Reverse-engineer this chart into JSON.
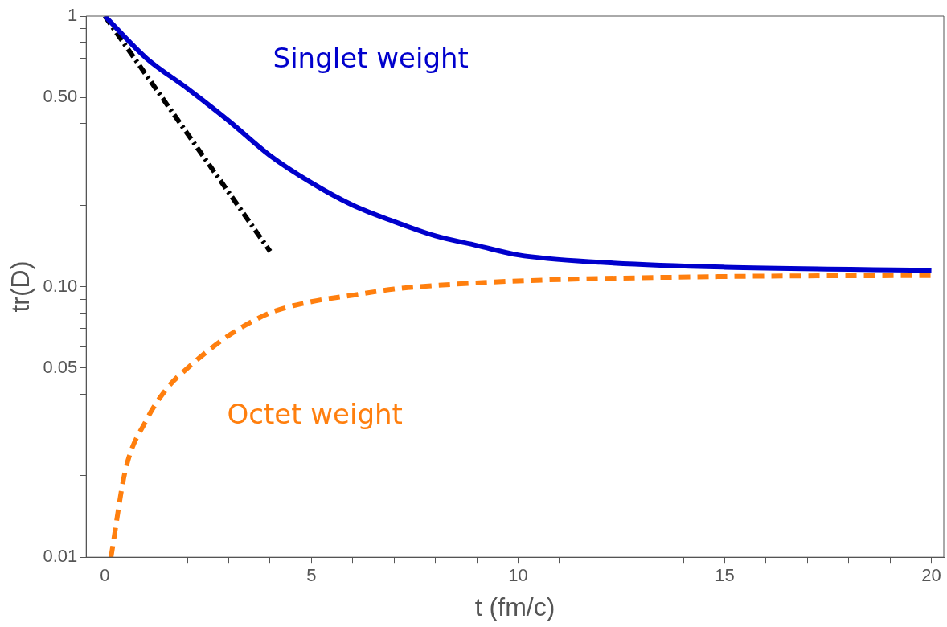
{
  "chart_data": {
    "type": "line",
    "xlabel": "t (fm/c)",
    "ylabel": "tr(D)",
    "log": "y",
    "grid": false,
    "legend": false,
    "marker": "none",
    "xlim": [
      -0.45,
      20.3
    ],
    "xticks": [
      0,
      {
        "value": 1,
        "label": null
      },
      {
        "value": 2,
        "label": null
      },
      {
        "value": 3,
        "label": null
      },
      {
        "value": 4,
        "label": null
      },
      5,
      {
        "value": 6,
        "label": null
      },
      {
        "value": 7,
        "label": null
      },
      {
        "value": 8,
        "label": null
      },
      {
        "value": 9,
        "label": null
      },
      10,
      {
        "value": 11,
        "label": null
      },
      {
        "value": 12,
        "label": null
      },
      {
        "value": 13,
        "label": null
      },
      {
        "value": 14,
        "label": null
      },
      15,
      {
        "value": 16,
        "label": null
      },
      {
        "value": 17,
        "label": null
      },
      {
        "value": 18,
        "label": null
      },
      {
        "value": 19,
        "label": null
      },
      20
    ],
    "ylim": [
      0.01,
      1
    ],
    "yticks": [
      0.01,
      {
        "value": 0.02,
        "label": null
      },
      {
        "value": 0.03,
        "label": null
      },
      {
        "value": 0.04,
        "label": null
      },
      {
        "value": 0.05,
        "label": "0.05"
      },
      {
        "value": 0.06,
        "label": null
      },
      {
        "value": 0.07,
        "label": null
      },
      {
        "value": 0.08,
        "label": null
      },
      {
        "value": 0.09,
        "label": null
      },
      {
        "value": 0.1,
        "label": "0.10"
      },
      {
        "value": 0.2,
        "label": null
      },
      {
        "value": 0.3,
        "label": null
      },
      {
        "value": 0.4,
        "label": null
      },
      {
        "value": 0.5,
        "label": "0.50"
      },
      {
        "value": 0.6,
        "label": null
      },
      {
        "value": 0.7,
        "label": null
      },
      {
        "value": 0.8,
        "label": null
      },
      {
        "value": 0.9,
        "label": null
      },
      1
    ],
    "series": [
      {
        "name": "Singlet weight",
        "color": "#0000cc",
        "line_style": "solid",
        "x": [
          0,
          1,
          2,
          3,
          4,
          5,
          6,
          7,
          8,
          9,
          10,
          12,
          15,
          20
        ],
        "values": [
          1,
          0.7,
          0.54,
          0.41,
          0.305,
          0.242,
          0.2,
          0.174,
          0.154,
          0.142,
          0.131,
          0.123,
          0.118,
          0.115
        ]
      },
      {
        "name": "Octet weight",
        "color": "#ff7f0e",
        "line_style": "dashed",
        "x": [
          0.15,
          0.5,
          1,
          1.5,
          2,
          3,
          4,
          5,
          6,
          7,
          8,
          10,
          15,
          20
        ],
        "values": [
          0.01,
          0.021,
          0.032,
          0.042,
          0.05,
          0.066,
          0.08,
          0.088,
          0.093,
          0.098,
          0.101,
          0.105,
          0.109,
          0.11
        ]
      },
      {
        "color": "#000000",
        "line_style": "dotted",
        "x": [
          0,
          4
        ],
        "values": [
          1,
          0.135
        ]
      }
    ]
  }
}
